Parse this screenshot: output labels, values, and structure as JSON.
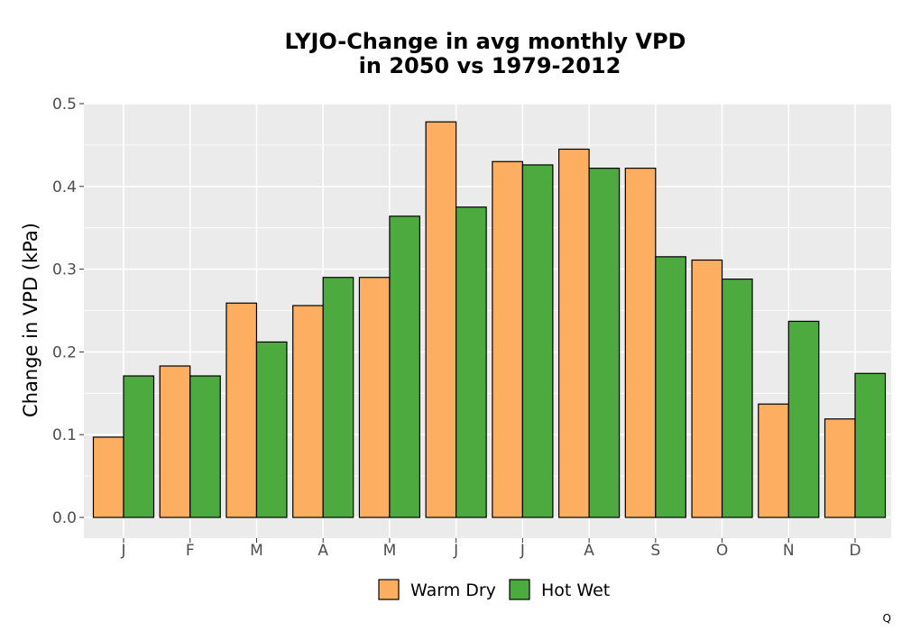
{
  "chart_data": {
    "type": "bar",
    "title_lines": [
      "LYJO-Change in avg monthly VPD",
      "in 2050 vs 1979-2012"
    ],
    "xlabel": "",
    "ylabel": "Change in VPD (kPa)",
    "ylim": [
      -0.024,
      0.5
    ],
    "yticks": [
      "0.0",
      "0.1",
      "0.2",
      "0.3",
      "0.4",
      "0.5"
    ],
    "categories": [
      "J",
      "F",
      "M",
      "A",
      "M",
      "J",
      "J",
      "A",
      "S",
      "O",
      "N",
      "D"
    ],
    "series": [
      {
        "name": "Warm Dry",
        "color": "#fdae61",
        "values": [
          0.097,
          0.183,
          0.259,
          0.256,
          0.29,
          0.478,
          0.43,
          0.445,
          0.422,
          0.311,
          0.137,
          0.119
        ]
      },
      {
        "name": "Hot Wet",
        "color": "#4daa3f",
        "values": [
          0.171,
          0.171,
          0.212,
          0.29,
          0.364,
          0.375,
          0.426,
          0.422,
          0.315,
          0.288,
          0.237,
          0.174
        ]
      }
    ],
    "grid": true,
    "background": "#ebebeb",
    "legend_position": "bottom"
  },
  "corner_mark": "Q"
}
